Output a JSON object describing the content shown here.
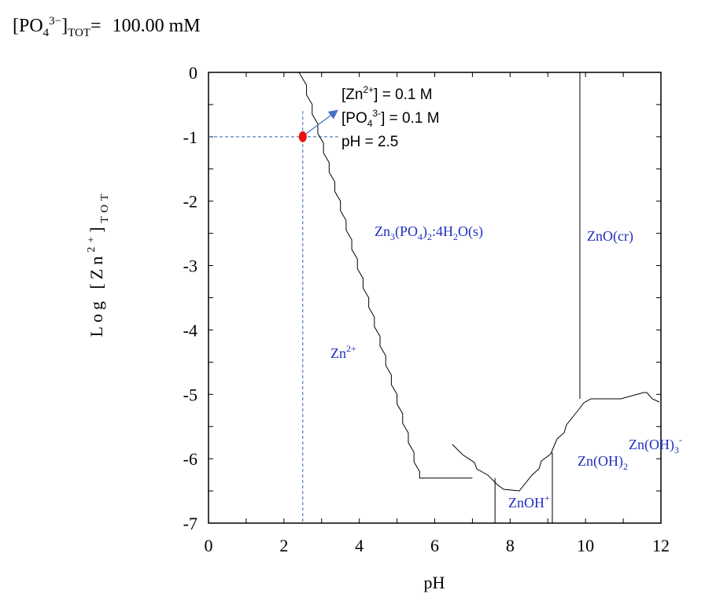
{
  "header": {
    "species_main": "[PO",
    "species_sub": "4",
    "species_sup": "3−",
    "species_close": "]",
    "tot_sub": "TOT",
    "equals": "=",
    "value": "100.00 mM"
  },
  "chart_data": {
    "type": "line",
    "title": "[PO4 3−]TOT = 100.00 mM",
    "xlabel": "pH",
    "ylabel": "Log [Zn2+]TOT",
    "xlim": [
      0,
      12
    ],
    "ylim": [
      -7,
      0
    ],
    "x_ticks": [
      "0",
      "2",
      "4",
      "6",
      "8",
      "10",
      "12"
    ],
    "x_tick_values": [
      0,
      2,
      4,
      6,
      8,
      10,
      12
    ],
    "y_ticks": [
      "0",
      "-1",
      "-2",
      "-3",
      "-4",
      "-5",
      "-6",
      "-7"
    ],
    "y_tick_values": [
      0,
      -1,
      -2,
      -3,
      -4,
      -5,
      -6,
      -7
    ],
    "ylabel_parts": {
      "main": "Log [Zn",
      "sup": "2+",
      "close": "]",
      "sub": "TOT"
    },
    "boundaries": [
      {
        "name": "zn2-vs-zn3po4-boundary",
        "points": [
          [
            2.4,
            0
          ],
          [
            2.6,
            -0.2
          ],
          [
            2.6,
            -0.35
          ],
          [
            2.75,
            -0.5
          ],
          [
            2.75,
            -0.65
          ],
          [
            2.9,
            -0.8
          ],
          [
            2.9,
            -0.95
          ],
          [
            3.05,
            -1.1
          ],
          [
            3.05,
            -1.25
          ],
          [
            3.2,
            -1.4
          ],
          [
            3.2,
            -1.55
          ],
          [
            3.35,
            -1.7
          ],
          [
            3.35,
            -1.85
          ],
          [
            3.5,
            -2.0
          ],
          [
            3.5,
            -2.15
          ],
          [
            3.65,
            -2.3
          ],
          [
            3.65,
            -2.45
          ],
          [
            3.8,
            -2.6
          ],
          [
            3.8,
            -2.75
          ],
          [
            3.95,
            -2.9
          ],
          [
            3.95,
            -3.05
          ],
          [
            4.1,
            -3.2
          ],
          [
            4.1,
            -3.35
          ],
          [
            4.25,
            -3.5
          ],
          [
            4.25,
            -3.65
          ],
          [
            4.4,
            -3.8
          ],
          [
            4.4,
            -3.95
          ],
          [
            4.55,
            -4.1
          ],
          [
            4.55,
            -4.25
          ],
          [
            4.7,
            -4.4
          ],
          [
            4.7,
            -4.55
          ],
          [
            4.85,
            -4.7
          ],
          [
            4.85,
            -4.85
          ],
          [
            5.0,
            -5.0
          ],
          [
            5.0,
            -5.15
          ],
          [
            5.15,
            -5.3
          ],
          [
            5.15,
            -5.45
          ],
          [
            5.3,
            -5.6
          ],
          [
            5.3,
            -5.75
          ],
          [
            5.45,
            -5.9
          ],
          [
            5.45,
            -6.05
          ],
          [
            5.6,
            -6.2
          ],
          [
            5.6,
            -6.3
          ],
          [
            5.6,
            -6.3
          ],
          [
            7.0,
            -6.3
          ],
          [
            7.0,
            -6.3
          ]
        ]
      },
      {
        "name": "znoh-left-boundary",
        "points": [
          [
            7.6,
            -7
          ],
          [
            7.6,
            -6.3
          ]
        ]
      }
    ],
    "data_marker": {
      "x": 2.5,
      "y": -1,
      "color": "#ee1111"
    },
    "reference_lines": {
      "x": 2.5,
      "y": -1,
      "color": "#2f5fb3"
    },
    "arrow_color": "#4472c4",
    "annotations": {
      "zn_conc": {
        "pre": "[Zn",
        "sup": "2+",
        "post": "] = 0.1 M"
      },
      "po4_conc": {
        "pre": "[PO",
        "sub": "4",
        "sup": "3-",
        "post": "] = 0.1 M"
      },
      "ph": "pH = 2.5"
    },
    "region_labels": {
      "zn2": {
        "base": "Zn",
        "sup": "2+"
      },
      "zn3po4": {
        "a": "Zn",
        "b": "3",
        "c": "(PO",
        "d": "4",
        "e": ")",
        "f": "2",
        "g": ":4H",
        "h": "2",
        "i": "O(s)"
      },
      "zno": "ZnO(cr)",
      "znoh": {
        "base": "ZnOH",
        "sup": "+"
      },
      "znoh2": {
        "base": "Zn(OH)",
        "sub": "2"
      },
      "znoh3": {
        "base": "Zn(OH)",
        "sub": "3",
        "sup": "-"
      }
    },
    "label_color": "#1f2fbf"
  }
}
